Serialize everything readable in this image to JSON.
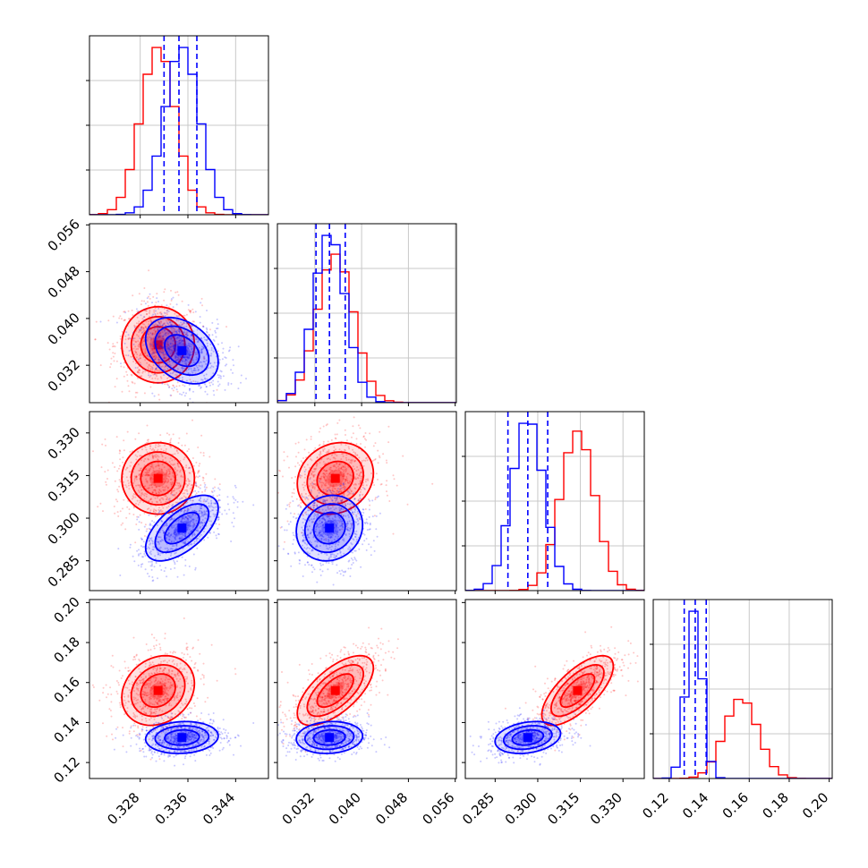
{
  "chart_data": {
    "type": "corner",
    "title": "",
    "parameters": [
      {
        "range": [
          0.3195,
          0.3495
        ],
        "ticks": [
          "0.328",
          "0.336",
          "0.344"
        ],
        "tick_values": [
          0.328,
          0.336,
          0.344
        ]
      },
      {
        "range": [
          0.0256,
          0.0562
        ],
        "ticks": [
          "0.032",
          "0.040",
          "0.048",
          "0.056"
        ],
        "tick_values": [
          0.032,
          0.04,
          0.048,
          0.056
        ]
      },
      {
        "range": [
          0.2745,
          0.3375
        ],
        "ticks": [
          "0.285",
          "0.300",
          "0.315",
          "0.330"
        ],
        "tick_values": [
          0.285,
          0.3,
          0.315,
          0.33
        ]
      },
      {
        "range": [
          0.112,
          0.2015
        ],
        "ticks": [
          "0.12",
          "0.14",
          "0.16",
          "0.18",
          "0.20"
        ],
        "tick_values": [
          0.12,
          0.14,
          0.16,
          0.18,
          0.2
        ]
      }
    ],
    "series": [
      {
        "name": "red",
        "color": "#ff0000",
        "mean": [
          0.331,
          0.0355,
          0.314,
          0.156
        ],
        "std": [
          0.0029,
          0.0031,
          0.006,
          0.0083
        ],
        "corr": [
          0.0,
          0.0,
          0.2,
          0.15,
          0.65,
          0.7
        ]
      },
      {
        "name": "blue",
        "color": "#0000ff",
        "mean": [
          0.335,
          0.0345,
          0.2965,
          0.1325
        ],
        "std": [
          0.0029,
          0.0027,
          0.0055,
          0.0038
        ],
        "corr": [
          -0.35,
          0.6,
          0.1,
          0.1,
          0.1,
          0.25
        ]
      }
    ],
    "quantile_lines": {
      "color": "#0000ff",
      "style": "dashed",
      "values": [
        [
          0.332,
          0.3345,
          0.3375
        ],
        [
          0.0322,
          0.0345,
          0.0372
        ],
        [
          0.2895,
          0.2965,
          0.3035
        ],
        [
          0.1275,
          0.133,
          0.1385
        ]
      ]
    }
  }
}
